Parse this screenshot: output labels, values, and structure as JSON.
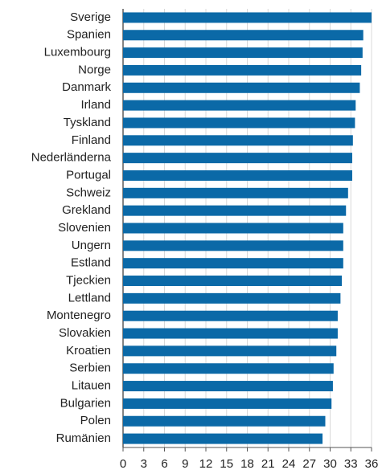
{
  "chart_data": {
    "type": "bar",
    "orientation": "horizontal",
    "categories": [
      "Sverige",
      "Spanien",
      "Luxembourg",
      "Norge",
      "Danmark",
      "Irland",
      "Tyskland",
      "Finland",
      "Nederländerna",
      "Portugal",
      "Schweiz",
      "Grekland",
      "Slovenien",
      "Ungern",
      "Estland",
      "Tjeckien",
      "Lettland",
      "Montenegro",
      "Slovakien",
      "Kroatien",
      "Serbien",
      "Litauen",
      "Bulgarien",
      "Polen",
      "Rumänien"
    ],
    "values": [
      36.0,
      34.8,
      34.7,
      34.5,
      34.3,
      33.7,
      33.6,
      33.3,
      33.2,
      33.2,
      32.6,
      32.3,
      31.9,
      31.9,
      31.9,
      31.7,
      31.5,
      31.1,
      31.1,
      30.9,
      30.5,
      30.4,
      30.2,
      29.3,
      28.9
    ],
    "color": "#0b69a7",
    "xlim": [
      0,
      36
    ],
    "xticks": [
      0,
      3,
      6,
      9,
      12,
      15,
      18,
      21,
      24,
      27,
      30,
      33,
      36
    ],
    "grid": true
  }
}
